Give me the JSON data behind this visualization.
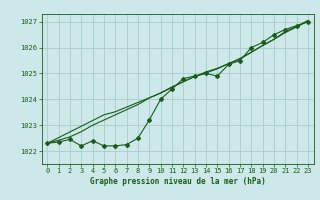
{
  "title": "Graphe pression niveau de la mer (hPa)",
  "bg_color": "#cce8e8",
  "grid_color": "#aacccc",
  "line_color": "#1a5c1a",
  "xlim": [
    -0.5,
    23.5
  ],
  "ylim": [
    1021.5,
    1027.3
  ],
  "yticks": [
    1022,
    1023,
    1024,
    1025,
    1026,
    1027
  ],
  "xticks": [
    0,
    1,
    2,
    3,
    4,
    5,
    6,
    7,
    8,
    9,
    10,
    11,
    12,
    13,
    14,
    15,
    16,
    17,
    18,
    19,
    20,
    21,
    22,
    23
  ],
  "jagged": [
    1022.3,
    1022.35,
    1022.45,
    1022.2,
    1022.4,
    1022.2,
    1022.2,
    1022.25,
    1022.5,
    1023.2,
    1024.0,
    1024.4,
    1024.8,
    1024.9,
    1025.0,
    1024.9,
    1025.35,
    1025.5,
    1026.0,
    1026.2,
    1026.5,
    1026.7,
    1026.85,
    1027.0
  ],
  "smooth": [
    1022.3,
    1022.42,
    1022.55,
    1022.75,
    1023.0,
    1023.2,
    1023.4,
    1023.6,
    1023.8,
    1024.05,
    1024.25,
    1024.48,
    1024.68,
    1024.88,
    1025.02,
    1025.18,
    1025.38,
    1025.58,
    1025.82,
    1026.08,
    1026.32,
    1026.58,
    1026.8,
    1027.02
  ],
  "linear": [
    1022.3,
    1022.52,
    1022.74,
    1022.96,
    1023.18,
    1023.4,
    1023.52,
    1023.7,
    1023.88,
    1024.06,
    1024.24,
    1024.46,
    1024.68,
    1024.88,
    1025.06,
    1025.2,
    1025.38,
    1025.56,
    1025.82,
    1026.08,
    1026.32,
    1026.62,
    1026.82,
    1027.05
  ],
  "marker": "D",
  "markersize": 2.0,
  "linewidth": 0.8,
  "title_fontsize": 5.5,
  "tick_fontsize": 5.0
}
